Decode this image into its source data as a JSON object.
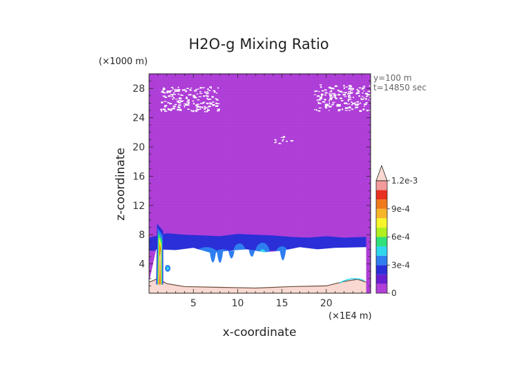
{
  "chart_data": {
    "type": "heatmap",
    "title": "H2O-g Mixing Ratio",
    "xlabel": "x-coordinate",
    "ylabel": "z-coordinate",
    "x_unit": "(×1E4 m)",
    "y_unit": "(×1000 m)",
    "annotations": [
      "y=100 m",
      "t=14850 sec"
    ],
    "xlim": [
      0,
      25
    ],
    "ylim": [
      0,
      30
    ],
    "x_ticks": [
      5,
      10,
      15,
      20
    ],
    "y_ticks": [
      4,
      8,
      12,
      16,
      20,
      24,
      28
    ],
    "colorbar": {
      "tick_labels": [
        "0",
        "3e-4",
        "6e-4",
        "9e-4",
        "1.2e-3"
      ],
      "tick_values": [
        0,
        0.0003,
        0.0006,
        0.0009,
        0.0012
      ],
      "extend": "max",
      "bins": [
        {
          "from": 0,
          "to": 0.0001,
          "color": "#b040d8"
        },
        {
          "from": 0.0001,
          "to": 0.0002,
          "color": "#6a1fd0"
        },
        {
          "from": 0.0002,
          "to": 0.0003,
          "color": "#2a2fd8"
        },
        {
          "from": 0.0003,
          "to": 0.0004,
          "color": "#2f7ef0"
        },
        {
          "from": 0.0004,
          "to": 0.0005,
          "color": "#2ed6ee"
        },
        {
          "from": 0.0005,
          "to": 0.0006,
          "color": "#30e07a"
        },
        {
          "from": 0.0006,
          "to": 0.0007,
          "color": "#b0f020"
        },
        {
          "from": 0.0007,
          "to": 0.0008,
          "color": "#f5f52a"
        },
        {
          "from": 0.0008,
          "to": 0.0009,
          "color": "#f7b52a"
        },
        {
          "from": 0.0009,
          "to": 0.001,
          "color": "#f07a1a"
        },
        {
          "from": 0.001,
          "to": 0.0011,
          "color": "#e83020"
        },
        {
          "from": 0.0011,
          "to": 0.0012,
          "color": "#f59a9a"
        },
        {
          "from": 0.0012,
          "to": null,
          "color": "#f8d8d0"
        }
      ]
    },
    "fields": {
      "background": {
        "description_value": 5e-05,
        "color": "#b040d8"
      },
      "cloud_band_top": [
        [
          0,
          7.6
        ],
        [
          2,
          8.2
        ],
        [
          4,
          8.0
        ],
        [
          6,
          7.9
        ],
        [
          8,
          7.8
        ],
        [
          10,
          8.1
        ],
        [
          12,
          8.0
        ],
        [
          14,
          7.9
        ],
        [
          16,
          7.7
        ],
        [
          18,
          7.6
        ],
        [
          20,
          7.8
        ],
        [
          22,
          7.6
        ],
        [
          24.5,
          7.7
        ]
      ],
      "white_region_top": [
        [
          0.8,
          6.0
        ],
        [
          3,
          5.9
        ],
        [
          5,
          6.2
        ],
        [
          7,
          5.5
        ],
        [
          9,
          5.8
        ],
        [
          11,
          6.0
        ],
        [
          13,
          5.6
        ],
        [
          15,
          5.8
        ],
        [
          17,
          6.3
        ],
        [
          19,
          6.0
        ],
        [
          21,
          6.2
        ],
        [
          24.5,
          6.3
        ]
      ],
      "surface_layer_top": [
        [
          0,
          1.5
        ],
        [
          1,
          2.0
        ],
        [
          2,
          1.3
        ],
        [
          4,
          0.9
        ],
        [
          8,
          0.8
        ],
        [
          12,
          0.7
        ],
        [
          16,
          0.9
        ],
        [
          20,
          1.0
        ],
        [
          22,
          1.6
        ],
        [
          23.5,
          1.9
        ],
        [
          24.5,
          1.5
        ]
      ],
      "left_plume": {
        "x": [
          0.8,
          1.6
        ],
        "z_top": 9.5,
        "max_value": 0.0012
      }
    }
  }
}
